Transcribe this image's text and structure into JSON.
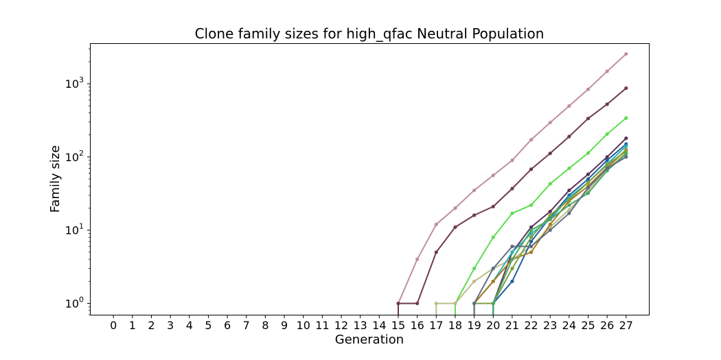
{
  "chart_data": {
    "type": "line",
    "title": "Clone family sizes for high_qfac Neutral Population",
    "xlabel": "Generation",
    "ylabel": "Family size",
    "yscale": "log",
    "ylim": [
      0.7,
      3500
    ],
    "xlim": [
      -1.2,
      28.2
    ],
    "grid": false,
    "x_ticks": [
      "0",
      "1",
      "2",
      "3",
      "4",
      "5",
      "6",
      "7",
      "8",
      "9",
      "10",
      "11",
      "12",
      "13",
      "14",
      "15",
      "16",
      "17",
      "18",
      "19",
      "20",
      "21",
      "22",
      "23",
      "24",
      "25",
      "26",
      "27"
    ],
    "y_ticks": [
      {
        "base": "10",
        "exp": "0",
        "value": 1
      },
      {
        "base": "10",
        "exp": "1",
        "value": 10
      },
      {
        "base": "10",
        "exp": "2",
        "value": 100
      },
      {
        "base": "10",
        "exp": "3",
        "value": 1000
      }
    ],
    "series": [
      {
        "color": "#c08e9c",
        "x": [
          15,
          16,
          17,
          18,
          19,
          20,
          21,
          22,
          23,
          24,
          25,
          26,
          27
        ],
        "y": [
          1,
          4,
          12,
          20,
          35,
          56,
          90,
          172,
          295,
          497,
          840,
          1480,
          2550
        ]
      },
      {
        "color": "#6e3a4e",
        "x": [
          15,
          16,
          17,
          18,
          19,
          20,
          21,
          22,
          23,
          24,
          25,
          26,
          27
        ],
        "y": [
          1,
          1,
          5,
          11,
          16,
          21,
          37,
          68,
          112,
          190,
          335,
          525,
          870
        ]
      },
      {
        "color": "#5edc50",
        "x": [
          18,
          19,
          20,
          21,
          22,
          23,
          24,
          25,
          26,
          27
        ],
        "y": [
          1,
          3,
          8,
          17,
          22,
          43,
          70,
          113,
          205,
          340
        ]
      },
      {
        "color": "#bdbd8a",
        "x": [
          17,
          18,
          19,
          20,
          21,
          22,
          23,
          24,
          25,
          26,
          27
        ],
        "y": [
          1,
          1,
          2,
          3,
          4,
          6,
          11,
          19,
          35,
          68,
          115
        ]
      },
      {
        "color": "#5b3358",
        "x": [
          20,
          21,
          22,
          23,
          24,
          25,
          26,
          27
        ],
        "y": [
          1,
          5,
          11,
          18,
          35,
          58,
          100,
          180
        ]
      },
      {
        "color": "#1f5fa0",
        "x": [
          20,
          21,
          22,
          23,
          24,
          25,
          26,
          27
        ],
        "y": [
          1,
          2,
          7,
          15,
          30,
          50,
          90,
          150
        ]
      },
      {
        "color": "#2bb3b3",
        "x": [
          19,
          20,
          21,
          22,
          23,
          24,
          25,
          26,
          27
        ],
        "y": [
          1,
          2,
          5,
          9,
          14,
          28,
          45,
          80,
          140
        ]
      },
      {
        "color": "#a87a20",
        "x": [
          19,
          20,
          21,
          22,
          23,
          24,
          25,
          26,
          27
        ],
        "y": [
          1,
          2,
          4,
          5,
          12,
          25,
          40,
          72,
          125
        ]
      },
      {
        "color": "#7d9e3c",
        "x": [
          19,
          20,
          21,
          22,
          23,
          24,
          25,
          26,
          27
        ],
        "y": [
          1,
          1,
          3,
          8,
          16,
          26,
          45,
          78,
          120
        ]
      },
      {
        "color": "#4aa864",
        "x": [
          20,
          21,
          22,
          23,
          24,
          25,
          26,
          27
        ],
        "y": [
          1,
          4,
          10,
          14,
          22,
          32,
          65,
          110
        ]
      },
      {
        "color": "#5f6f83",
        "x": [
          19,
          20,
          21,
          22,
          23,
          24,
          25,
          26,
          27
        ],
        "y": [
          1,
          3,
          6,
          6,
          10,
          17,
          38,
          70,
          100
        ]
      }
    ]
  }
}
